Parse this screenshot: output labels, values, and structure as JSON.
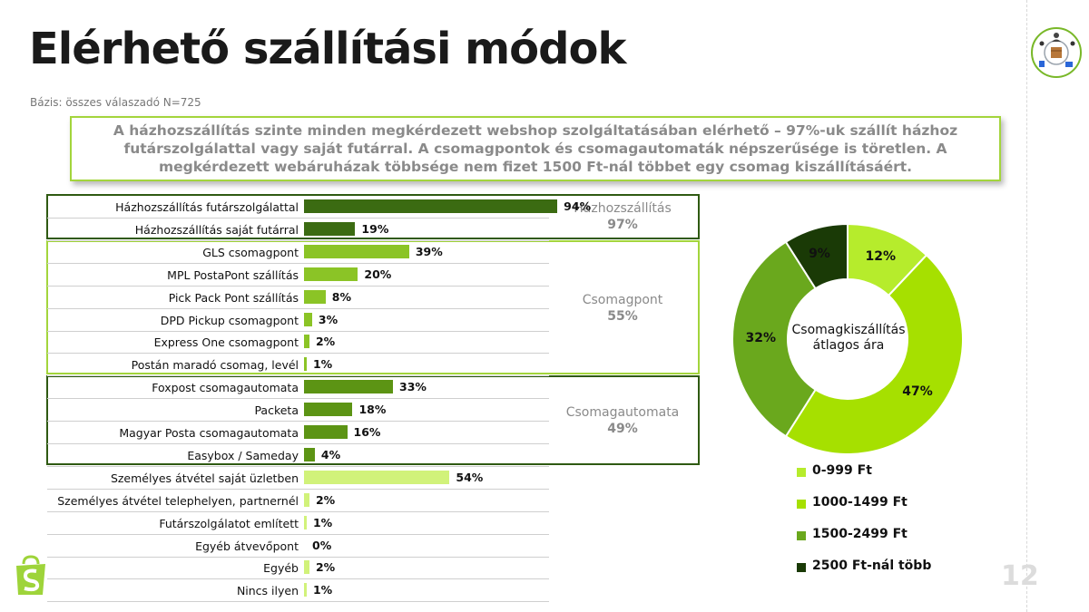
{
  "page": {
    "title": "Elérhető szállítási módok",
    "base": "Bázis: összes válaszadó N=725",
    "summary": "A házhozszállítás szinte minden megkérdezett webshop szolgáltatásában elérhető – 97%-uk szállít házhoz futárszolgálattal vagy saját futárral. A csomagpontok és csomagautomaták népszerűsége is töretlen. A megkérdezett webáruházak többsége nem fizet 1500 Ft-nál többet egy csomag kiszállításáért.",
    "page_number": "12"
  },
  "groups": [
    {
      "name": "Házhozszállítás",
      "value": "97%"
    },
    {
      "name": "Csomagpont",
      "value": "55%"
    },
    {
      "name": "Csomagautomata",
      "value": "49%"
    }
  ],
  "colors": {
    "dark_green": "#3b6b12",
    "mid_green": "#6aa81d",
    "light_green": "#a3d53c",
    "pale_green": "#d1f27a",
    "lime": "#b3e51f",
    "very_dark": "#1a3a06"
  },
  "chart_data": [
    {
      "type": "bar",
      "orientation": "horizontal",
      "title": "",
      "xlim": [
        0,
        100
      ],
      "categories": [
        "Házhozszállítás futárszolgálattal",
        "Házhozszállítás saját futárral",
        "GLS csomagpont",
        "MPL PostaPont szállítás",
        "Pick Pack Pont szállítás",
        "DPD Pickup csomagpont",
        "Express One csomagpont",
        "Postán maradó csomag, levél",
        "Foxpost csomagautomata",
        "Packeta",
        "Magyar Posta csomagautomata",
        "Easybox / Sameday",
        "Személyes átvétel saját üzletben",
        "Személyes átvétel telephelyen, partnernél",
        "Futárszolgálatot említett",
        "Egyéb átvevőpont",
        "Egyéb",
        "Nincs ilyen"
      ],
      "values": [
        94,
        19,
        39,
        20,
        8,
        3,
        2,
        1,
        33,
        18,
        16,
        4,
        54,
        2,
        1,
        0,
        2,
        1
      ],
      "labels": [
        "94%",
        "19%",
        "39%",
        "20%",
        "8%",
        "3%",
        "2%",
        "1%",
        "33%",
        "18%",
        "16%",
        "4%",
        "54%",
        "2%",
        "1%",
        "0%",
        "2%",
        "1%"
      ],
      "colors": [
        "#3b6b12",
        "#3b6b12",
        "#8bc426",
        "#8bc426",
        "#8bc426",
        "#8bc426",
        "#8bc426",
        "#8bc426",
        "#5c9414",
        "#5c9414",
        "#5c9414",
        "#5c9414",
        "#d1f27a",
        "#d1f27a",
        "#d1f27a",
        "#d1f27a",
        "#d1f27a",
        "#d1f27a"
      ]
    },
    {
      "type": "pie",
      "donut": true,
      "center_label": "Csomagkiszállítás átlagos ára",
      "categories": [
        "0-999 Ft",
        "1000-1499 Ft",
        "1500-2499 Ft",
        "2500 Ft-nál több"
      ],
      "values": [
        12,
        47,
        32,
        9
      ],
      "labels": [
        "12%",
        "47%",
        "32%",
        "9%"
      ],
      "colors": [
        "#b6ec2c",
        "#a6e000",
        "#6aa81d",
        "#1a3a06"
      ],
      "legend_position": "bottom"
    }
  ]
}
